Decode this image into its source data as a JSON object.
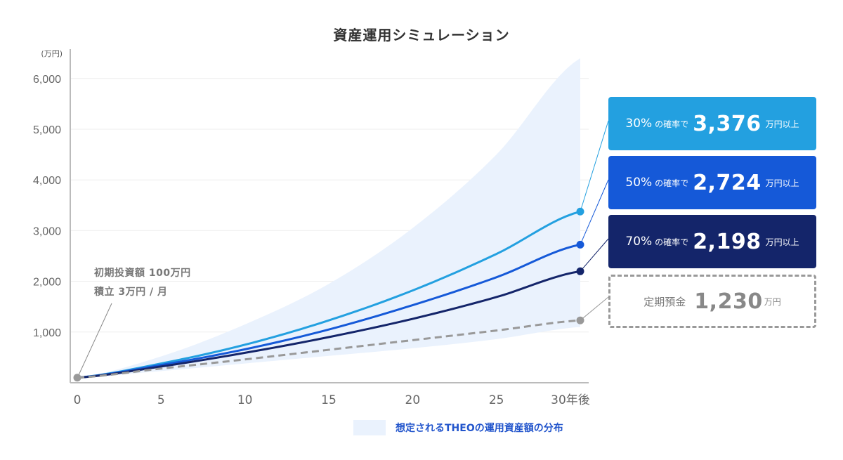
{
  "title": "資産運用シミュレーション",
  "colors": {
    "p30": "#23a0e0",
    "p50": "#1559d8",
    "p70": "#14256a",
    "deposit": "#999999",
    "band": "#eaf2fd",
    "grid": "#eeeeee",
    "axis": "#bbbbbb",
    "tick_text": "#666666",
    "legend_text": "#2255cc"
  },
  "annotation": {
    "line1": "初期投資額 100万円",
    "line2": "積立 3万円 / 月"
  },
  "cards": [
    {
      "pct": "30%",
      "mid": "の確率で",
      "value": "3,376",
      "unit": "万円以上"
    },
    {
      "pct": "50%",
      "mid": "の確率で",
      "value": "2,724",
      "unit": "万円以上"
    },
    {
      "pct": "70%",
      "mid": "の確率で",
      "value": "2,198",
      "unit": "万円以上"
    },
    {
      "pct": "",
      "mid": "定期預金",
      "value": "1,230",
      "unit": "万円"
    }
  ],
  "legend": {
    "label": "想定されるTHEOの運用資産額の分布"
  },
  "chart_data": {
    "type": "line",
    "title": "資産運用シミュレーション",
    "xlabel": "年後",
    "ylabel": "(万円)",
    "x_ticks": [
      "0",
      "5",
      "10",
      "15",
      "20",
      "25",
      "30年後"
    ],
    "x_tick_values": [
      0,
      5,
      10,
      15,
      20,
      25,
      30
    ],
    "y_ticks": [
      "1,000",
      "2,000",
      "3,000",
      "4,000",
      "5,000",
      "6,000"
    ],
    "y_tick_values": [
      1000,
      2000,
      3000,
      4000,
      5000,
      6000
    ],
    "y_unit_label": "(万円)",
    "xlim": [
      0,
      30
    ],
    "ylim": [
      0,
      6450
    ],
    "grid": true,
    "legend_position": "bottom-right",
    "x": [
      0,
      5,
      10,
      15,
      20,
      25,
      30
    ],
    "series": [
      {
        "name": "30%の確率で",
        "key": "p30",
        "style": "solid",
        "values": [
          100,
          380,
          750,
          1230,
          1820,
          2540,
          3376
        ]
      },
      {
        "name": "50%の確率で",
        "key": "p50",
        "style": "solid",
        "values": [
          100,
          350,
          660,
          1050,
          1530,
          2080,
          2724
        ]
      },
      {
        "name": "70%の確率で",
        "key": "p70",
        "style": "solid",
        "values": [
          100,
          320,
          590,
          900,
          1260,
          1690,
          2198
        ]
      },
      {
        "name": "定期預金",
        "key": "deposit",
        "style": "dashed",
        "values": [
          100,
          280,
          460,
          650,
          840,
          1030,
          1230
        ]
      }
    ],
    "band": {
      "name": "想定されるTHEOの運用資産額の分布",
      "upper": [
        100,
        520,
        1150,
        1950,
        3050,
        4500,
        6400
      ],
      "lower": [
        100,
        230,
        380,
        530,
        680,
        860,
        1100
      ]
    },
    "start_point": {
      "x": 0,
      "y": 100,
      "label": "初期投資額 100万円 / 積立 3万円 / 月"
    },
    "end_labels": [
      {
        "series": "p30",
        "text": "30% の確率で 3,376 万円以上"
      },
      {
        "series": "p50",
        "text": "50% の確率で 2,724 万円以上"
      },
      {
        "series": "p70",
        "text": "70% の確率で 2,198 万円以上"
      },
      {
        "series": "deposit",
        "text": "定期預金 1,230万円"
      }
    ]
  }
}
